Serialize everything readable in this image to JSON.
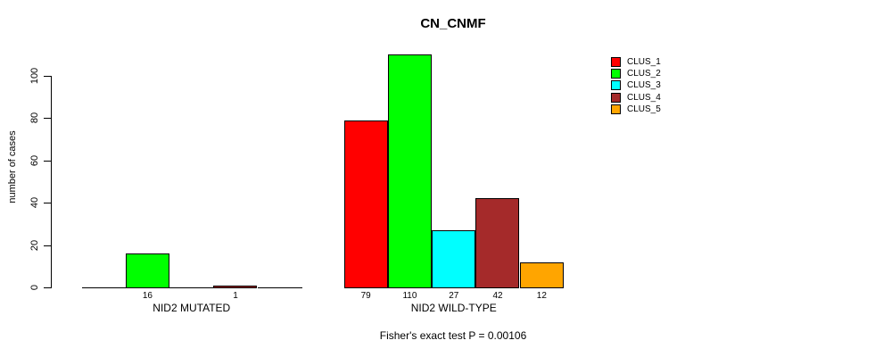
{
  "chart_data": {
    "type": "bar",
    "title": "CN_CNMF",
    "ylabel": "number of cases",
    "xlabel": "",
    "ylim": [
      0,
      110
    ],
    "yticks": [
      0,
      20,
      40,
      60,
      80,
      100
    ],
    "grid": false,
    "legend_position": "top-right",
    "categories": [
      "NID2 MUTATED",
      "NID2 WILD-TYPE"
    ],
    "series": [
      {
        "name": "CLUS_1",
        "color": "#FF0000",
        "values": [
          0,
          79
        ]
      },
      {
        "name": "CLUS_2",
        "color": "#00FF00",
        "values": [
          16,
          110
        ]
      },
      {
        "name": "CLUS_3",
        "color": "#00FFFF",
        "values": [
          0,
          27
        ]
      },
      {
        "name": "CLUS_4",
        "color": "#A52A2A",
        "values": [
          1,
          42
        ]
      },
      {
        "name": "CLUS_5",
        "color": "#FFA500",
        "values": [
          0,
          12
        ]
      }
    ],
    "footnote": "Fisher's exact test P = 0.00106"
  }
}
